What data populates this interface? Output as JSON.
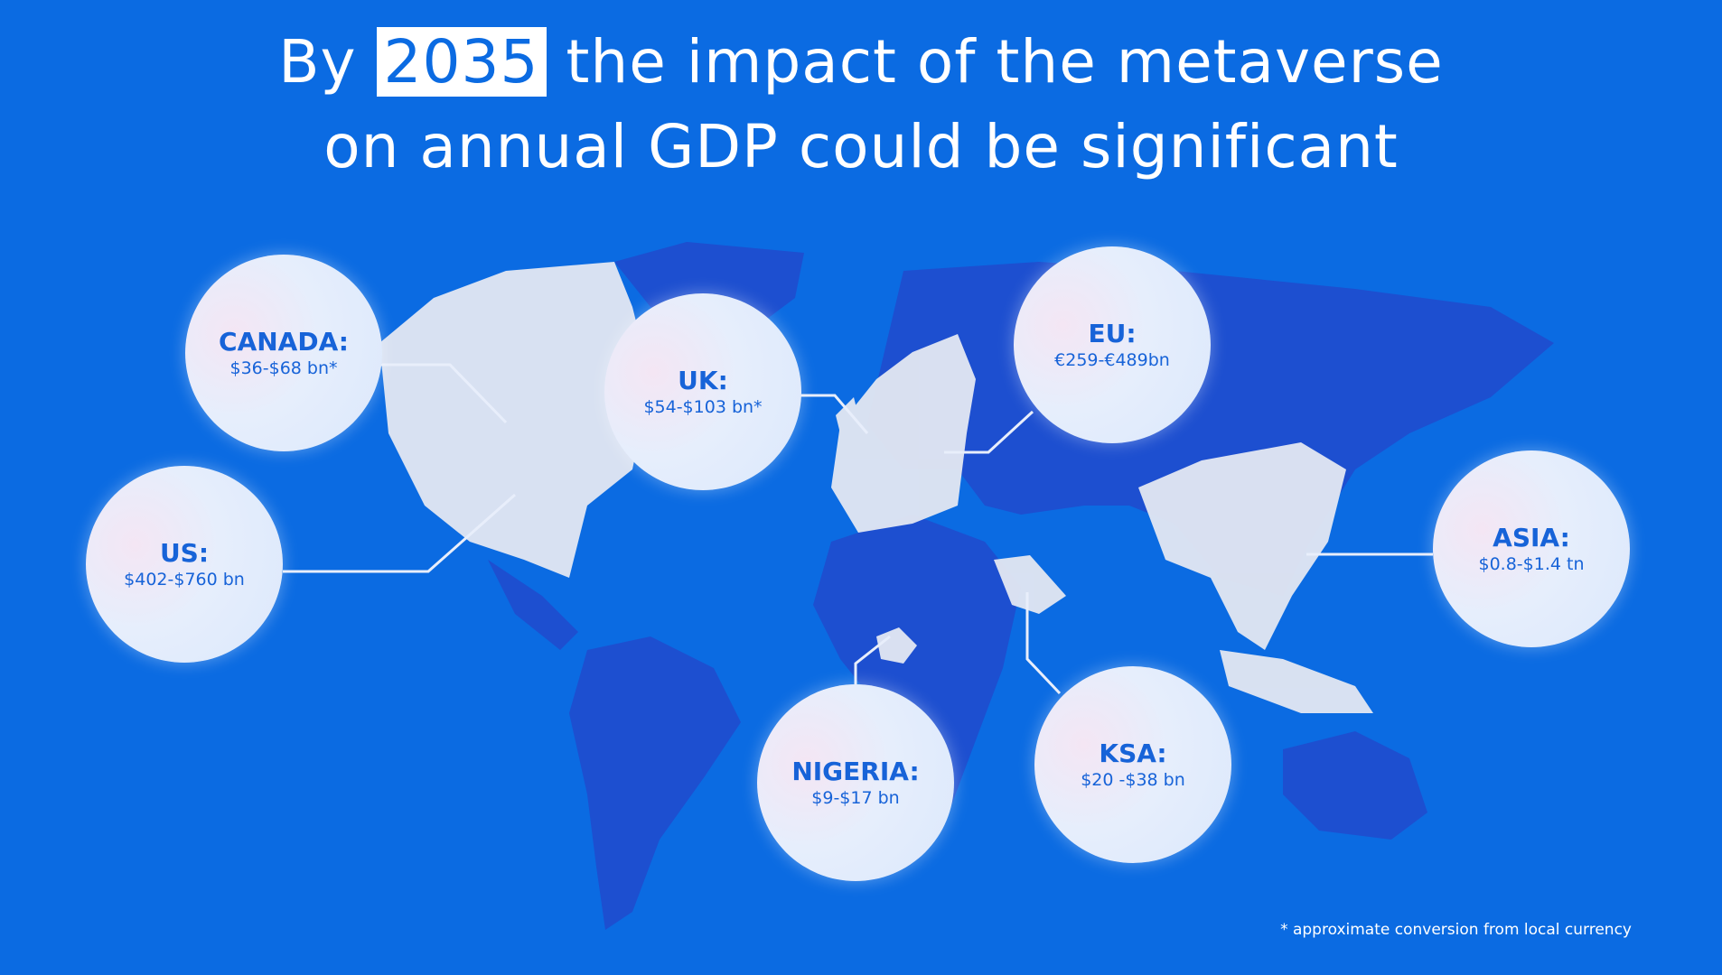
{
  "title": {
    "line1_pre": "By",
    "line1_highlight": "2035",
    "line1_post": "the impact of the metaverse",
    "line2": "on annual GDP could be significant"
  },
  "regions": [
    {
      "name": "CANADA:",
      "value": "$36-$68 bn*"
    },
    {
      "name": "UK:",
      "value": "$54-$103 bn*"
    },
    {
      "name": "EU:",
      "value": "€259-€489bn"
    },
    {
      "name": "US:",
      "value": "$402-$760 bn"
    },
    {
      "name": "ASIA:",
      "value": "$0.8-$1.4 tn"
    },
    {
      "name": "NIGERIA:",
      "value": "$9-$17 bn"
    },
    {
      "name": "KSA:",
      "value": "$20 -$38 bn"
    }
  ],
  "footnote": "* approximate conversion from local currency",
  "colors": {
    "background": "#0b6be2",
    "map": "#1d4fd0",
    "highlighted_land": "#e4e8f2",
    "bubble_text": "#1763d8"
  }
}
